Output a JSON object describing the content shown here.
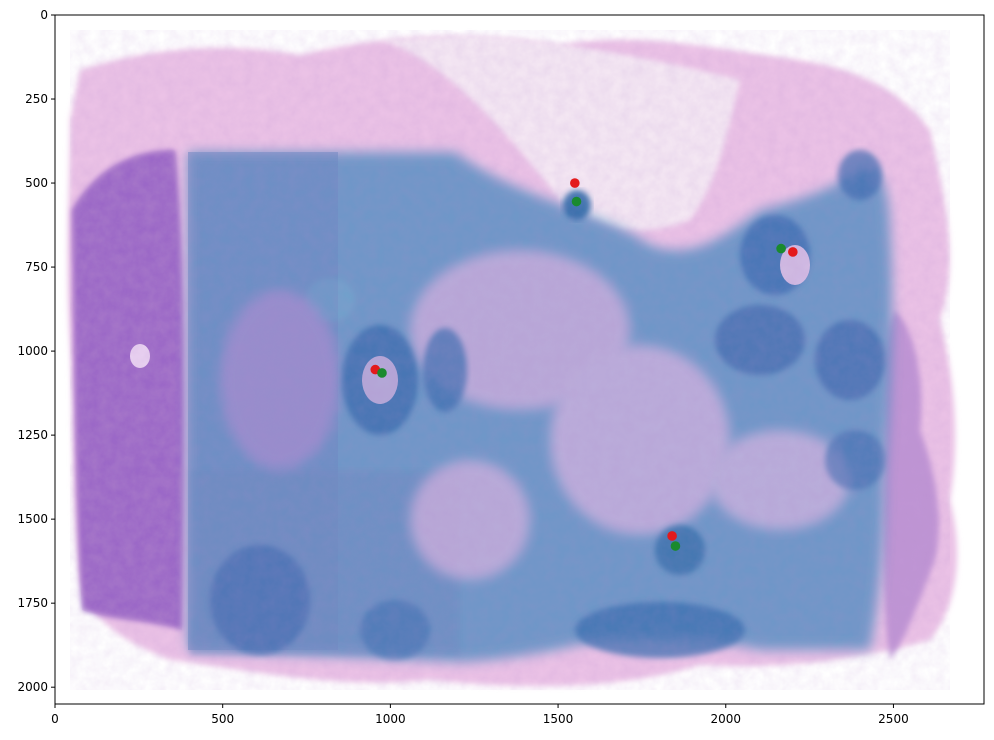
{
  "chart_data": {
    "type": "scatter",
    "title": "",
    "xlabel": "",
    "ylabel": "",
    "xlim": [
      0,
      2770
    ],
    "ylim": [
      2050,
      0
    ],
    "x_ticks": [
      0,
      500,
      1000,
      1500,
      2000,
      2500
    ],
    "y_ticks": [
      0,
      250,
      500,
      750,
      1000,
      1250,
      1500,
      1750,
      2000
    ],
    "x_tick_labels": [
      "0",
      "500",
      "1000",
      "1500",
      "2000",
      "2500"
    ],
    "y_tick_labels": [
      "0",
      "250",
      "500",
      "750",
      "1000",
      "1250",
      "1500",
      "1750",
      "2000"
    ],
    "grid": false,
    "background": "histology tissue image (H&E stain, pink/purple) with blue spot overlay",
    "series": [
      {
        "color": "#e31a1c",
        "points": [
          [
            1550,
            500
          ],
          [
            2200,
            705
          ],
          [
            955,
            1055
          ],
          [
            1840,
            1550
          ]
        ]
      },
      {
        "color": "#1a8a2e",
        "points": [
          [
            1555,
            555
          ],
          [
            2165,
            695
          ],
          [
            975,
            1065
          ],
          [
            1850,
            1580
          ]
        ]
      }
    ],
    "colors": {
      "tissue_pink": "#e9b9e3",
      "tissue_purple": "#7e4fb3",
      "overlay_blue": "#3f86b8"
    }
  }
}
